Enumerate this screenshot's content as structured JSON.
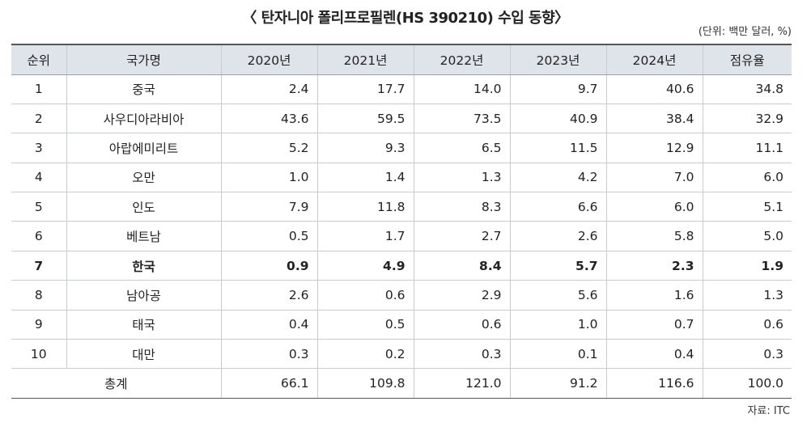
{
  "title": "〈 탄자니아 폴리프로필렌(HS 390210) 수입 동향〉",
  "unit_note": "(단위: 백만 달러, %)",
  "table": {
    "headers": [
      "순위",
      "국가명",
      "2020년",
      "2021년",
      "2022년",
      "2023년",
      "2024년",
      "점유율"
    ],
    "rows": [
      [
        "1",
        "중국",
        "2.4",
        "17.7",
        "14.0",
        "9.7",
        "40.6",
        "34.8"
      ],
      [
        "2",
        "사우디아라비아",
        "43.6",
        "59.5",
        "73.5",
        "40.9",
        "38.4",
        "32.9"
      ],
      [
        "3",
        "아랍에미리트",
        "5.2",
        "9.3",
        "6.5",
        "11.5",
        "12.9",
        "11.1"
      ],
      [
        "4",
        "오만",
        "1.0",
        "1.4",
        "1.3",
        "4.2",
        "7.0",
        "6.0"
      ],
      [
        "5",
        "인도",
        "7.9",
        "11.8",
        "8.3",
        "6.6",
        "6.0",
        "5.1"
      ],
      [
        "6",
        "베트남",
        "0.5",
        "1.7",
        "2.7",
        "2.6",
        "5.8",
        "5.0"
      ],
      [
        "7",
        "한국",
        "0.9",
        "4.9",
        "8.4",
        "5.7",
        "2.3",
        "1.9"
      ],
      [
        "8",
        "남아공",
        "2.6",
        "0.6",
        "2.9",
        "5.6",
        "1.6",
        "1.3"
      ],
      [
        "9",
        "태국",
        "0.4",
        "0.5",
        "0.6",
        "1.0",
        "0.7",
        "0.6"
      ],
      [
        "10",
        "대만",
        "0.3",
        "0.2",
        "0.3",
        "0.1",
        "0.4",
        "0.3"
      ]
    ],
    "highlight_row_index": 6,
    "total": {
      "label": "총계",
      "values": [
        "66.1",
        "109.8",
        "121.0",
        "91.2",
        "116.6",
        "100.0"
      ]
    }
  },
  "source": "자료: ITC",
  "colors": {
    "header_bg": "#dfe3ea",
    "text": "#222222",
    "rule": "#555555",
    "grid": "#c7cbd1"
  }
}
